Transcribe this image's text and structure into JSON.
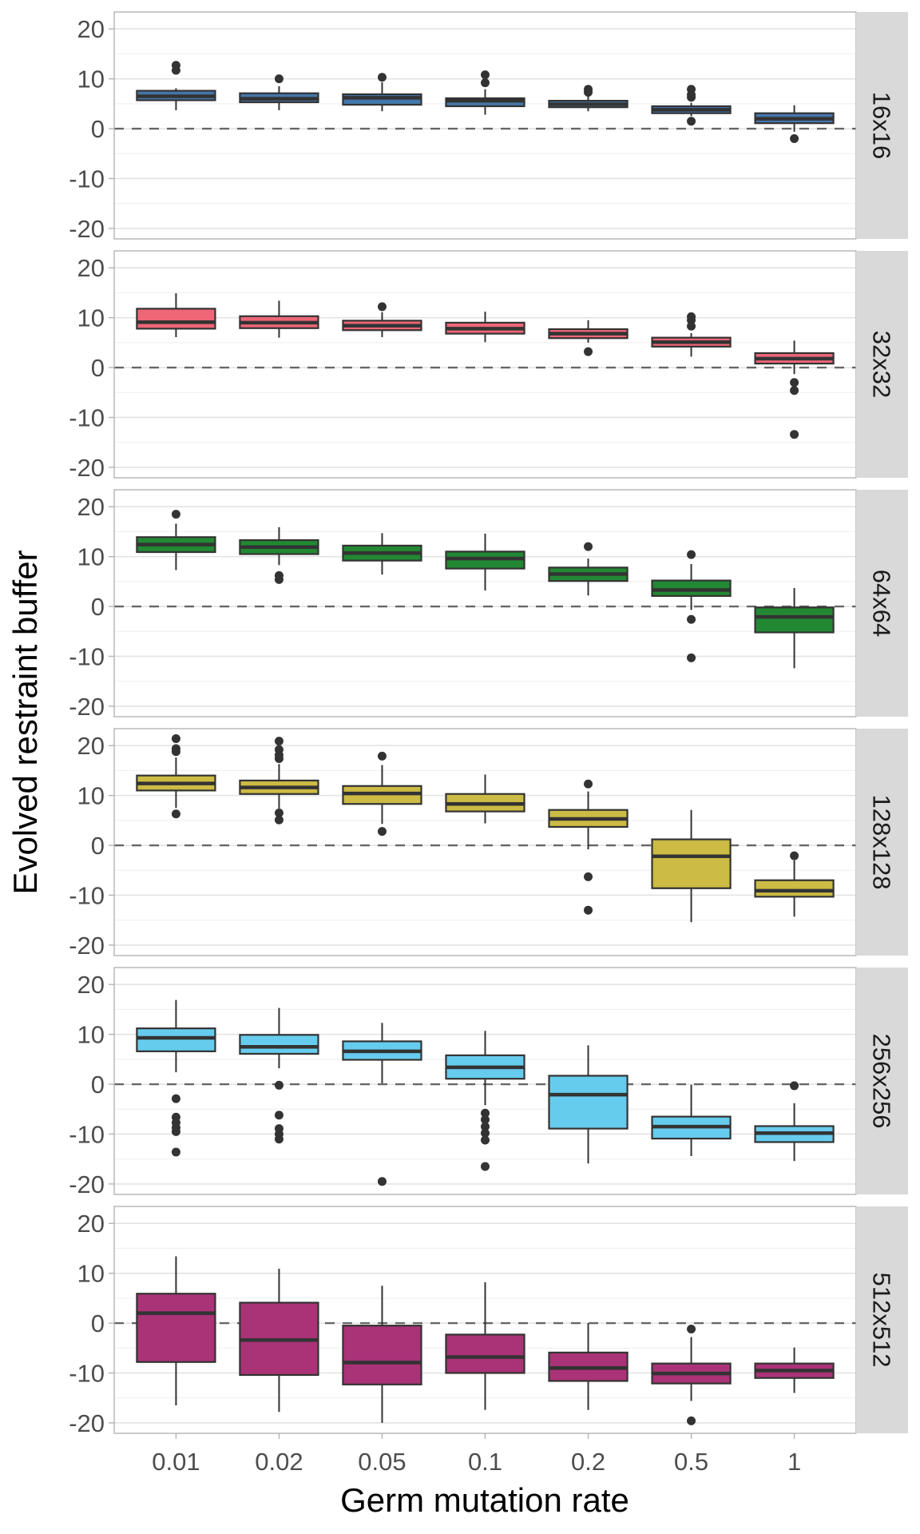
{
  "chart_data": {
    "type": "boxplot",
    "xlabel": "Germ mutation rate",
    "ylabel": "Evolved restraint buffer",
    "categories": [
      "0.01",
      "0.02",
      "0.05",
      "0.1",
      "0.2",
      "0.5",
      "1"
    ],
    "ylim": [
      -22.1,
      23.4
    ],
    "yticks": [
      -20,
      -10,
      0,
      10,
      20
    ],
    "ytick_labels": [
      "-20",
      "-10",
      "0",
      "10",
      "20"
    ],
    "reference_line": {
      "y": 0,
      "style": "dashed",
      "color": "#666666"
    },
    "grid": true,
    "facet_by": "grid size",
    "facet_strip_position": "right",
    "panels": [
      {
        "label": "16x16",
        "color": "#4477AA",
        "boxes": [
          {
            "q1": 5.7,
            "median": 6.5,
            "q3": 7.6,
            "lower": 3.7,
            "upper": 8.1,
            "outliers": [
              12.7,
              11.7
            ]
          },
          {
            "q1": 5.3,
            "median": 6.0,
            "q3": 7.1,
            "lower": 3.7,
            "upper": 8.5,
            "outliers": [
              10.0
            ]
          },
          {
            "q1": 4.8,
            "median": 6.2,
            "q3": 6.9,
            "lower": 3.5,
            "upper": 9.3,
            "outliers": [
              10.3
            ]
          },
          {
            "q1": 4.5,
            "median": 5.6,
            "q3": 6.1,
            "lower": 2.8,
            "upper": 7.9,
            "outliers": [
              10.8,
              9.2
            ]
          },
          {
            "q1": 4.3,
            "median": 4.9,
            "q3": 5.6,
            "lower": 3.5,
            "upper": 6.6,
            "outliers": [
              7.9,
              7.3
            ]
          },
          {
            "q1": 3.1,
            "median": 3.8,
            "q3": 4.5,
            "lower": 2.5,
            "upper": 5.2,
            "outliers": [
              7.9,
              6.8,
              6.3,
              1.5
            ]
          },
          {
            "q1": 1.1,
            "median": 2.0,
            "q3": 3.1,
            "lower": -0.6,
            "upper": 4.7,
            "outliers": [
              -2.0
            ]
          }
        ]
      },
      {
        "label": "32x32",
        "color": "#EE6677",
        "boxes": [
          {
            "q1": 7.8,
            "median": 9.1,
            "q3": 11.8,
            "lower": 6.1,
            "upper": 14.9,
            "outliers": []
          },
          {
            "q1": 7.9,
            "median": 9.0,
            "q3": 10.3,
            "lower": 6.0,
            "upper": 13.4,
            "outliers": []
          },
          {
            "q1": 7.5,
            "median": 8.4,
            "q3": 9.4,
            "lower": 6.1,
            "upper": 11.1,
            "outliers": [
              12.2
            ]
          },
          {
            "q1": 6.8,
            "median": 7.8,
            "q3": 9.0,
            "lower": 5.1,
            "upper": 11.2,
            "outliers": []
          },
          {
            "q1": 5.9,
            "median": 6.8,
            "q3": 7.7,
            "lower": 5.0,
            "upper": 9.5,
            "outliers": [
              3.2
            ]
          },
          {
            "q1": 4.2,
            "median": 5.1,
            "q3": 6.0,
            "lower": 2.2,
            "upper": 6.9,
            "outliers": [
              10.2,
              9.5,
              8.3
            ]
          },
          {
            "q1": 0.8,
            "median": 1.8,
            "q3": 2.9,
            "lower": -1.3,
            "upper": 5.4,
            "outliers": [
              -3.0,
              -4.6,
              -13.4
            ]
          }
        ]
      },
      {
        "label": "64x64",
        "color": "#228833",
        "boxes": [
          {
            "q1": 10.9,
            "median": 12.4,
            "q3": 13.9,
            "lower": 7.3,
            "upper": 16.6,
            "outliers": [
              18.5
            ]
          },
          {
            "q1": 10.5,
            "median": 11.9,
            "q3": 13.3,
            "lower": 8.3,
            "upper": 15.9,
            "outliers": [
              6.2,
              5.4
            ]
          },
          {
            "q1": 9.2,
            "median": 10.7,
            "q3": 12.2,
            "lower": 6.4,
            "upper": 14.7,
            "outliers": []
          },
          {
            "q1": 7.6,
            "median": 9.6,
            "q3": 11.0,
            "lower": 3.2,
            "upper": 14.6,
            "outliers": []
          },
          {
            "q1": 5.1,
            "median": 6.5,
            "q3": 7.8,
            "lower": 2.2,
            "upper": 9.6,
            "outliers": [
              12.0
            ]
          },
          {
            "q1": 2.1,
            "median": 3.3,
            "q3": 5.2,
            "lower": -0.7,
            "upper": 8.5,
            "outliers": [
              10.4,
              -2.6,
              -10.3
            ]
          },
          {
            "q1": -5.2,
            "median": -2.1,
            "q3": -0.2,
            "lower": -12.4,
            "upper": 3.7,
            "outliers": []
          }
        ]
      },
      {
        "label": "128x128",
        "color": "#CCBB44",
        "boxes": [
          {
            "q1": 11.0,
            "median": 12.4,
            "q3": 14.0,
            "lower": 7.5,
            "upper": 17.6,
            "outliers": [
              21.4,
              19.4,
              18.8,
              6.3
            ]
          },
          {
            "q1": 10.3,
            "median": 11.6,
            "q3": 13.0,
            "lower": 7.4,
            "upper": 16.3,
            "outliers": [
              20.9,
              19.2,
              18.1,
              17.4,
              6.5,
              5.1
            ]
          },
          {
            "q1": 8.3,
            "median": 10.4,
            "q3": 11.9,
            "lower": 4.3,
            "upper": 16.1,
            "outliers": [
              17.9,
              2.8
            ]
          },
          {
            "q1": 6.8,
            "median": 8.3,
            "q3": 10.3,
            "lower": 4.4,
            "upper": 14.2,
            "outliers": []
          },
          {
            "q1": 3.7,
            "median": 5.3,
            "q3": 7.1,
            "lower": -0.8,
            "upper": 10.8,
            "outliers": [
              12.3,
              -6.3,
              -13.0
            ]
          },
          {
            "q1": -8.6,
            "median": -2.2,
            "q3": 1.2,
            "lower": -15.4,
            "upper": 7.1,
            "outliers": []
          },
          {
            "q1": -10.3,
            "median": -9.1,
            "q3": -7.0,
            "lower": -14.3,
            "upper": -3.0,
            "outliers": [
              -2.1
            ]
          }
        ]
      },
      {
        "label": "256x256",
        "color": "#66CCEE",
        "boxes": [
          {
            "q1": 6.6,
            "median": 9.3,
            "q3": 11.2,
            "lower": 2.4,
            "upper": 16.9,
            "outliers": [
              -2.9,
              -6.6,
              -7.7,
              -8.7,
              -9.5,
              -13.6
            ]
          },
          {
            "q1": 6.1,
            "median": 7.5,
            "q3": 9.9,
            "lower": 3.2,
            "upper": 15.3,
            "outliers": [
              -0.2,
              -6.2,
              -8.9,
              -10.0,
              -11.0
            ]
          },
          {
            "q1": 4.9,
            "median": 6.6,
            "q3": 8.6,
            "lower": 0.2,
            "upper": 12.3,
            "outliers": [
              -19.5
            ]
          },
          {
            "q1": 1.1,
            "median": 3.4,
            "q3": 5.8,
            "lower": -4.2,
            "upper": 10.7,
            "outliers": [
              -5.8,
              -7.1,
              -8.5,
              -9.8,
              -11.2,
              -16.5
            ]
          },
          {
            "q1": -8.9,
            "median": -2.1,
            "q3": 1.7,
            "lower": -15.9,
            "upper": 7.8,
            "outliers": []
          },
          {
            "q1": -10.9,
            "median": -8.5,
            "q3": -6.5,
            "lower": -14.4,
            "upper": -0.1,
            "outliers": []
          },
          {
            "q1": -11.6,
            "median": -9.8,
            "q3": -8.4,
            "lower": -15.4,
            "upper": -3.8,
            "outliers": [
              -0.3
            ]
          }
        ]
      },
      {
        "label": "512x512",
        "color": "#AA3377",
        "boxes": [
          {
            "q1": -7.8,
            "median": 2.0,
            "q3": 5.9,
            "lower": -16.5,
            "upper": 13.4,
            "outliers": []
          },
          {
            "q1": -10.4,
            "median": -3.4,
            "q3": 4.1,
            "lower": -17.8,
            "upper": 10.9,
            "outliers": []
          },
          {
            "q1": -12.3,
            "median": -7.9,
            "q3": -0.5,
            "lower": -20.0,
            "upper": 7.5,
            "outliers": []
          },
          {
            "q1": -10.0,
            "median": -6.8,
            "q3": -2.3,
            "lower": -17.4,
            "upper": 8.2,
            "outliers": []
          },
          {
            "q1": -11.6,
            "median": -9.0,
            "q3": -5.9,
            "lower": -17.4,
            "upper": 0.0,
            "outliers": []
          },
          {
            "q1": -12.1,
            "median": -10.1,
            "q3": -8.1,
            "lower": -15.6,
            "upper": -2.8,
            "outliers": [
              -1.2,
              -19.6
            ]
          },
          {
            "q1": -11.0,
            "median": -9.5,
            "q3": -8.1,
            "lower": -14.0,
            "upper": -4.9,
            "outliers": []
          }
        ]
      }
    ]
  }
}
